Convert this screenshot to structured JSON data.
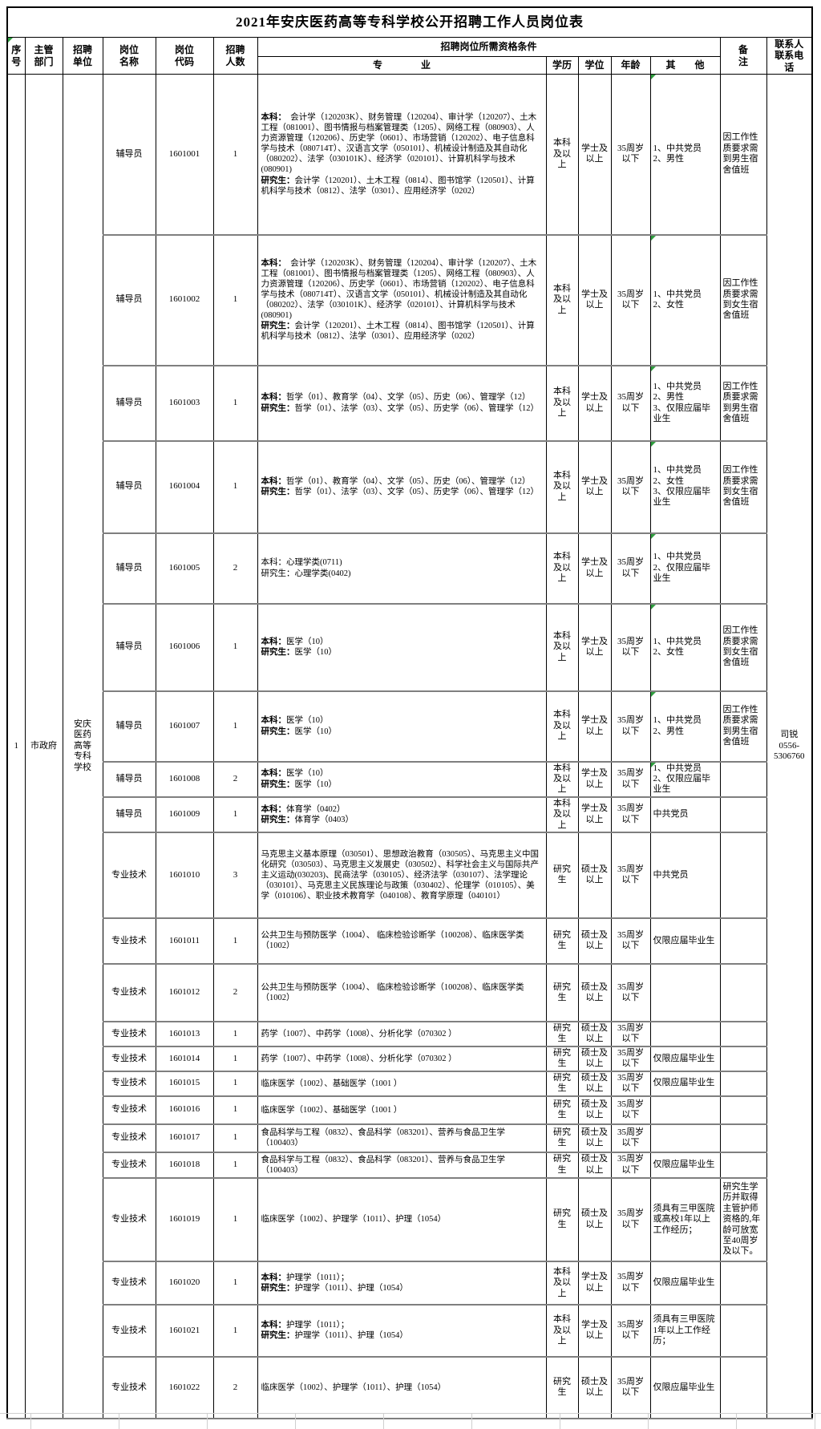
{
  "title": "2021年安庆医药高等专科学校公开招聘工作人员岗位表",
  "header": {
    "serial": "序号",
    "department": "主管部门",
    "employer": "招聘单位",
    "position_name": "岗位名称",
    "position_code": "岗位代码",
    "headcount": "招聘人数",
    "qualification_group": "招聘岗位所需资格条件",
    "major": "专　　　　业",
    "education": "学历",
    "degree": "学位",
    "age": "年龄",
    "other": "其　　他",
    "remark": "备注",
    "contact": "联系人联系电话"
  },
  "merged": {
    "serial": "1",
    "department": "市政府",
    "employer": "安庆医药高等专科学校",
    "contact": "司锐\n0556-\n5306760"
  },
  "rows": [
    {
      "name": "辅导员",
      "code": "1601001",
      "count": "1",
      "bold_labels": true,
      "green": true,
      "majors": "本科：  会计学（120203K）、财务管理（120204）、审计学（120207）、土木工程（081001）、图书情报与档案管理类（1205）、网络工程（080903）、人力资源管理（120206）、历史学（0601）、市场营销（120202）、电子信息科学与技术（080714T）、汉语言文学（050101）、机械设计制造及其自动化（080202）、法学（030101K）、经济学（020101）、计算机科学与技术(080901)\n研究生：会计学（120201）、土木工程（0814）、图书馆学（120501）、计算机科学与技术（0812）、法学（0301）、应用经济学（0202）",
      "education": "本科及以上",
      "degree": "学士及以上",
      "age": "35周岁以下",
      "other": "1、中共党员\n2、男性",
      "remark": "因工作性质要求需到男生宿舍值班"
    },
    {
      "name": "辅导员",
      "code": "1601002",
      "count": "1",
      "bold_labels": true,
      "green": true,
      "majors": "本科：  会计学（120203K）、财务管理（120204）、审计学（120207）、土木工程（081001）、图书情报与档案管理类（1205）、网络工程（080903）、人力资源管理（120206）、历史学（0601）、市场营销（120202）、电子信息科学与技术（080714T）、汉语言文学（050101）、机械设计制造及其自动化（080202）、法学（030101K）、经济学（020101）、计算机科学与技术(080901)\n研究生：会计学（120201）、土木工程（0814）、图书馆学（120501）、计算机科学与技术（0812）、法学（0301）、应用经济学（0202）",
      "education": "本科及以上",
      "degree": "学士及以上",
      "age": "35周岁以下",
      "other": "1、中共党员\n2、女性",
      "remark": "因工作性质要求需到女生宿舍值班"
    },
    {
      "name": "辅导员",
      "code": "1601003",
      "count": "1",
      "bold_labels": true,
      "green": true,
      "majors": "本科：哲学（01）、教育学（04）、文学（05）、历史（06）、管理学（12）\n研究生：哲学（01）、法学（03）、文学（05）、历史学（06）、管理学（12）",
      "education": "本科及以上",
      "degree": "学士及以上",
      "age": "35周岁以下",
      "other": "1、中共党员\n2、男性\n3、仅限应届毕业生",
      "remark": "因工作性质要求需到男生宿舍值班"
    },
    {
      "name": "辅导员",
      "code": "1601004",
      "count": "1",
      "bold_labels": true,
      "green": true,
      "majors": "本科：哲学（01）、教育学（04）、文学（05）、历史（06）、管理学（12）\n研究生：哲学（01）、法学（03）、文学（05）、历史学（06）、管理学（12）",
      "education": "本科及以上",
      "degree": "学士及以上",
      "age": "35周岁以下",
      "other": "1、中共党员\n2、女性\n3、仅限应届毕业生",
      "remark": "因工作性质要求需到女生宿舍值班"
    },
    {
      "name": "辅导员",
      "code": "1601005",
      "count": "2",
      "bold_labels": false,
      "green": true,
      "majors": "本科：心理学类(0711)\n研究生：心理学类(0402)",
      "education": "本科及以上",
      "degree": "学士及以上",
      "age": "35周岁以下",
      "other": "1、中共党员\n2、仅限应届毕业生",
      "remark": ""
    },
    {
      "name": "辅导员",
      "code": "1601006",
      "count": "1",
      "bold_labels": true,
      "green": true,
      "majors": "本科：医学（10）\n研究生：医学（10）",
      "education": "本科及以上",
      "degree": "学士及以上",
      "age": "35周岁以下",
      "other": "1、中共党员\n2、女性",
      "remark": "因工作性质要求需到女生宿舍值班"
    },
    {
      "name": "辅导员",
      "code": "1601007",
      "count": "1",
      "bold_labels": true,
      "green": true,
      "majors": "本科：医学（10）\n研究生：医学（10）",
      "education": "本科及以上",
      "degree": "学士及以上",
      "age": "35周岁以下",
      "other": "1、中共党员\n2、男性",
      "remark": "因工作性质要求需到男生宿舍值班"
    },
    {
      "name": "辅导员",
      "code": "1601008",
      "count": "2",
      "bold_labels": true,
      "green": true,
      "majors": "本科：医学（10）\n研究生：医学（10）",
      "education": "本科及以上",
      "degree": "学士及以上",
      "age": "35周岁以下",
      "other": "1、中共党员\n2、仅限应届毕业生",
      "remark": ""
    },
    {
      "name": "辅导员",
      "code": "1601009",
      "count": "1",
      "bold_labels": true,
      "green": false,
      "majors": "本科：体育学（0402）\n研究生：体育学（0403）",
      "education": "本科及以上",
      "degree": "学士及以上",
      "age": "35周岁以下",
      "other": "中共党员",
      "remark": ""
    },
    {
      "name": "专业技术",
      "code": "1601010",
      "count": "3",
      "bold_labels": false,
      "green": false,
      "majors": "马克思主义基本原理（030501）、思想政治教育（030505）、马克思主义中国化研究（030503）、马克思主义发展史（030502）、科学社会主义与国际共产主义运动(030203)、民商法学（030105）、经济法学（030107）、法学理论（030101）、马克思主义民族理论与政策（030402）、伦理学（010105）、美学（010106）、职业技术教育学（040108）、教育学原理（040101）",
      "education": "研究生",
      "degree": "硕士及以上",
      "age": "35周岁以下",
      "other": "中共党员",
      "remark": ""
    },
    {
      "name": "专业技术",
      "code": "1601011",
      "count": "1",
      "bold_labels": false,
      "green": false,
      "majors": "公共卫生与预防医学（1004）、 临床检验诊断学（100208）、临床医学类（1002）",
      "education": "研究生",
      "degree": "硕士及以上",
      "age": "35周岁以下",
      "other": "仅限应届毕业生",
      "remark": ""
    },
    {
      "name": "专业技术",
      "code": "1601012",
      "count": "2",
      "bold_labels": false,
      "green": false,
      "majors": "公共卫生与预防医学（1004）、 临床检验诊断学（100208）、临床医学类（1002）",
      "education": "研究生",
      "degree": "硕士及以上",
      "age": "35周岁以下",
      "other": "",
      "remark": ""
    },
    {
      "name": "专业技术",
      "code": "1601013",
      "count": "1",
      "bold_labels": false,
      "green": false,
      "majors": "药学（1007）、中药学（1008）、分析化学（070302 ）",
      "education": "研究生",
      "degree": "硕士及以上",
      "age": "35周岁以下",
      "other": "",
      "remark": ""
    },
    {
      "name": "专业技术",
      "code": "1601014",
      "count": "1",
      "bold_labels": false,
      "green": false,
      "majors": "药学（1007）、中药学（1008）、分析化学（070302 ）",
      "education": "研究生",
      "degree": "硕士及以上",
      "age": "35周岁以下",
      "other": "仅限应届毕业生",
      "remark": ""
    },
    {
      "name": "专业技术",
      "code": "1601015",
      "count": "1",
      "bold_labels": false,
      "green": false,
      "majors": "临床医学（1002）、基础医学（1001 ）",
      "education": "研究生",
      "degree": "硕士及以上",
      "age": "35周岁以下",
      "other": "仅限应届毕业生",
      "remark": ""
    },
    {
      "name": "专业技术",
      "code": "1601016",
      "count": "1",
      "bold_labels": false,
      "green": false,
      "majors": "临床医学（1002）、基础医学（1001 ）",
      "education": "研究生",
      "degree": "硕士及以上",
      "age": "35周岁以下",
      "other": "",
      "remark": ""
    },
    {
      "name": "专业技术",
      "code": "1601017",
      "count": "1",
      "bold_labels": false,
      "green": false,
      "majors": "食品科学与工程（0832）、食品科学（083201）、营养与食品卫生学（100403）",
      "education": "研究生",
      "degree": "硕士及以上",
      "age": "35周岁以下",
      "other": "",
      "remark": ""
    },
    {
      "name": "专业技术",
      "code": "1601018",
      "count": "1",
      "bold_labels": false,
      "green": false,
      "majors": "食品科学与工程（0832）、食品科学（083201）、营养与食品卫生学（100403）",
      "education": "研究生",
      "degree": "硕士及以上",
      "age": "35周岁以下",
      "other": "仅限应届毕业生",
      "remark": ""
    },
    {
      "name": "专业技术",
      "code": "1601019",
      "count": "1",
      "bold_labels": false,
      "green": false,
      "majors": "临床医学（1002）、护理学（1011）、护理（1054）",
      "education": "研究生",
      "degree": "硕士及以上",
      "age": "35周岁以下",
      "other": "须具有三甲医院或高校1年以上工作经历；",
      "remark": "研究生学历并取得主管护师资格的,年龄可放宽至40周岁及以下。"
    },
    {
      "name": "专业技术",
      "code": "1601020",
      "count": "1",
      "bold_labels": true,
      "green": false,
      "majors": "本科：护理学（1011）；\n研究生：护理学（1011）、护理（1054）",
      "education": "本科及以上",
      "degree": "学士及以上",
      "age": "35周岁以下",
      "other": "仅限应届毕业生",
      "remark": ""
    },
    {
      "name": "专业技术",
      "code": "1601021",
      "count": "1",
      "bold_labels": true,
      "green": false,
      "majors": "本科：护理学（1011）；\n研究生：护理学（1011）、护理（1054）",
      "education": "本科及以上",
      "degree": "学士及以上",
      "age": "35周岁以下",
      "other": "须具有三甲医院1年以上工作经历；",
      "remark": ""
    },
    {
      "name": "专业技术",
      "code": "1601022",
      "count": "2",
      "bold_labels": false,
      "green": false,
      "majors": "临床医学（1002）、护理学（1011）、护理（1054）",
      "education": "研究生",
      "degree": "硕士及以上",
      "age": "35周岁以下",
      "other": "仅限应届毕业生",
      "remark": ""
    }
  ]
}
